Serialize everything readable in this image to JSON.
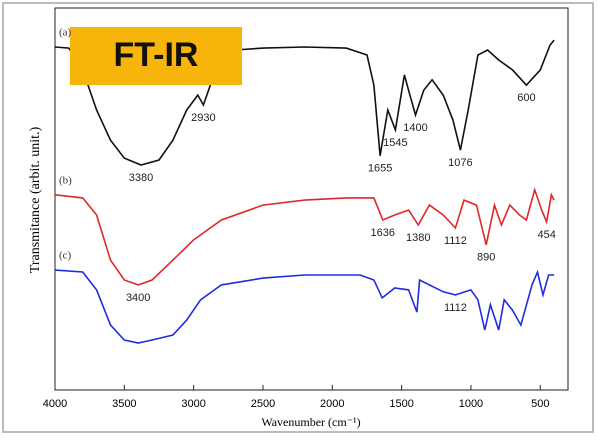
{
  "chart_data": {
    "type": "line",
    "badge": "FT-IR",
    "x_label": "Wavenumber (cm⁻¹)",
    "y_label": "Transmitance (arbit. unit.)",
    "xlim": [
      4000,
      300
    ],
    "xticks": [
      4000,
      3500,
      3000,
      2500,
      2000,
      1500,
      1000,
      500
    ],
    "ylim": [
      0,
      100
    ],
    "series": [
      {
        "name": "(a)",
        "color": "#111111",
        "x": [
          4000,
          3900,
          3800,
          3700,
          3600,
          3500,
          3380,
          3250,
          3150,
          3050,
          2970,
          2930,
          2880,
          2800,
          2700,
          2500,
          2200,
          1900,
          1750,
          1700,
          1655,
          1600,
          1545,
          1480,
          1440,
          1400,
          1340,
          1280,
          1200,
          1130,
          1076,
          1020,
          950,
          880,
          800,
          700,
          600,
          500,
          430,
          400
        ],
        "values": [
          89.8,
          89.5,
          83.8,
          73.3,
          65.4,
          60.7,
          58.9,
          60.2,
          65.4,
          73.3,
          77.2,
          74.6,
          79.8,
          86.4,
          89.0,
          89.5,
          89.8,
          89.5,
          87.7,
          79.8,
          61.3,
          73.3,
          68.1,
          82.5,
          77.2,
          72.0,
          78.5,
          81.2,
          77.2,
          70.7,
          62.8,
          73.3,
          87.7,
          89.0,
          86.4,
          83.8,
          79.8,
          83.8,
          90.3,
          91.6
        ],
        "peaks": [
          3380,
          2930,
          1655,
          1545,
          1400,
          1076,
          600
        ]
      },
      {
        "name": "(b)",
        "color": "#e02828",
        "x": [
          4000,
          3800,
          3700,
          3600,
          3500,
          3400,
          3300,
          3150,
          3000,
          2800,
          2500,
          2200,
          1900,
          1700,
          1650,
          1636,
          1550,
          1450,
          1380,
          1300,
          1200,
          1112,
          1050,
          960,
          890,
          830,
          780,
          720,
          650,
          600,
          540,
          490,
          454,
          420,
          400
        ],
        "values": [
          51.1,
          50.3,
          45.8,
          34.0,
          28.8,
          27.5,
          28.8,
          34.0,
          39.3,
          44.5,
          48.4,
          49.7,
          50.3,
          50.3,
          45.8,
          44.5,
          45.8,
          47.1,
          43.2,
          48.4,
          45.8,
          42.4,
          49.7,
          48.4,
          38.0,
          48.4,
          43.2,
          48.4,
          45.8,
          44.5,
          52.4,
          47.1,
          44.0,
          51.1,
          49.7
        ],
        "peaks": [
          3400,
          1636,
          1380,
          1112,
          890,
          454
        ]
      },
      {
        "name": "(c)",
        "color": "#1f2de0",
        "x": [
          4000,
          3800,
          3700,
          3600,
          3500,
          3400,
          3300,
          3150,
          3050,
          2950,
          2800,
          2500,
          2200,
          1800,
          1700,
          1640,
          1550,
          1450,
          1390,
          1370,
          1200,
          1112,
          1000,
          950,
          900,
          860,
          800,
          760,
          700,
          640,
          560,
          520,
          480,
          440,
          400
        ],
        "values": [
          31.4,
          30.9,
          26.2,
          17.0,
          13.1,
          12.3,
          13.1,
          14.4,
          18.3,
          23.6,
          27.5,
          29.3,
          30.1,
          30.1,
          28.8,
          24.1,
          26.7,
          26.2,
          20.4,
          28.8,
          25.7,
          24.9,
          26.2,
          23.6,
          15.7,
          22.3,
          15.7,
          23.6,
          20.9,
          17.0,
          27.5,
          30.9,
          24.9,
          30.1,
          30.1
        ],
        "peaks": [
          1112
        ]
      }
    ]
  }
}
